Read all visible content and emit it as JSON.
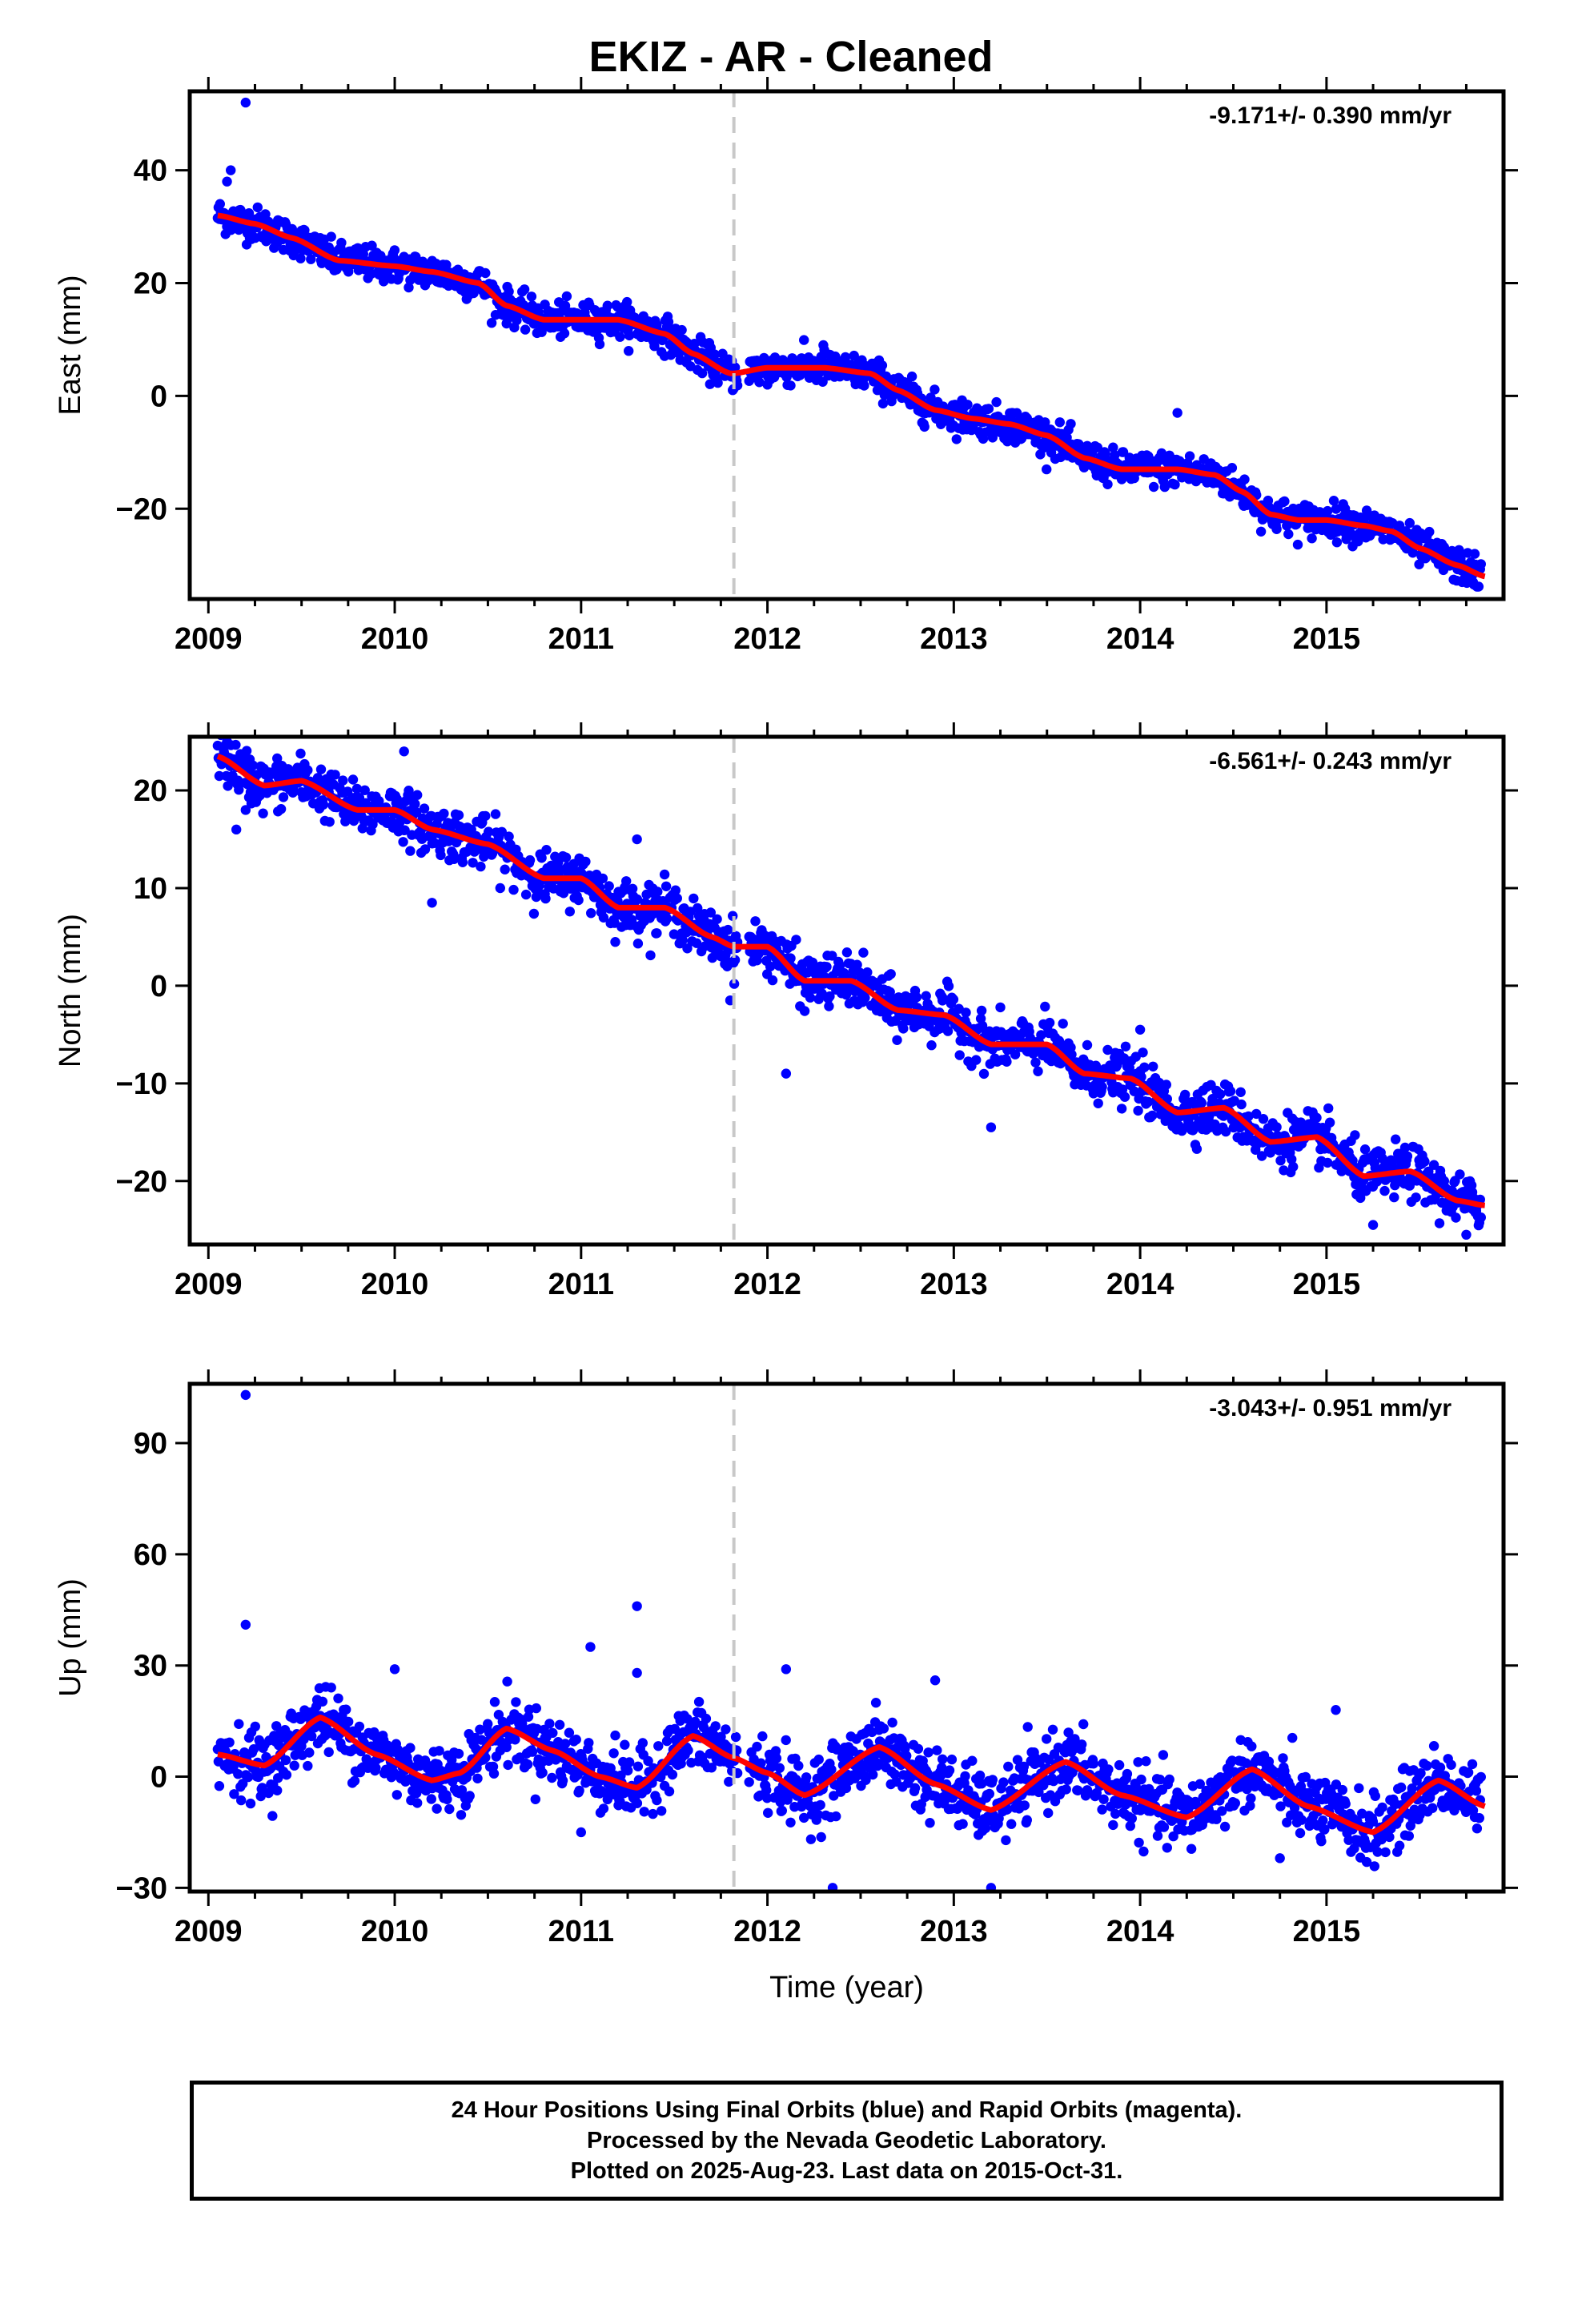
{
  "title": "EKIZ  - AR - Cleaned",
  "colors": {
    "points": "#0000ff",
    "fit": "#ff0000",
    "break_line": "#c8c8c8",
    "frame": "#000000"
  },
  "footer": {
    "line1": "24 Hour Positions Using Final Orbits (blue) and Rapid Orbits (magenta).",
    "line2": "Processed by the Nevada Geodetic Laboratory.",
    "line3": "Plotted on 2025-Aug-23. Last data on 2015-Oct-31."
  },
  "chart_data": [
    {
      "type": "scatter",
      "ylabel": "East (mm)",
      "annotation": "-9.171+/- 0.390 mm/yr",
      "xlim": [
        2008.9,
        2015.95
      ],
      "ylim": [
        -36,
        54
      ],
      "xticks": [
        2009,
        2010,
        2011,
        2012,
        2013,
        2014,
        2015
      ],
      "yticks": [
        40,
        20,
        0,
        -20
      ],
      "ytick_labels": [
        "40",
        "20",
        "0",
        "−20"
      ],
      "break_x": 2011.82,
      "grid": false,
      "fit_line": {
        "x": [
          2009.05,
          2009.25,
          2009.45,
          2009.7,
          2010.0,
          2010.2,
          2010.45,
          2010.6,
          2010.8,
          2011.0,
          2011.2,
          2011.45,
          2011.6,
          2011.8,
          2011.82,
          2012.0,
          2012.3,
          2012.55,
          2012.7,
          2012.9,
          2013.1,
          2013.3,
          2013.5,
          2013.7,
          2013.9,
          2014.2,
          2014.4,
          2014.55,
          2014.7,
          2014.85,
          2015.0,
          2015.2,
          2015.35,
          2015.5,
          2015.7,
          2015.85
        ],
        "y": [
          32,
          30.5,
          28,
          24,
          23,
          22,
          20,
          16,
          13.5,
          13.5,
          13.5,
          11,
          7.5,
          4,
          4,
          5,
          5,
          4,
          1,
          -2.5,
          -4,
          -5,
          -7,
          -11,
          -13,
          -13,
          -14,
          -17,
          -21,
          -22,
          -22,
          -23,
          -24,
          -27,
          -30,
          -32
        ]
      },
      "points_note": "daily positions around fit line",
      "scatter": 1.5,
      "outliers": [
        [
          2009.1,
          38
        ],
        [
          2009.12,
          40
        ],
        [
          2009.2,
          52
        ],
        [
          2009.1,
          30
        ],
        [
          2012.3,
          9
        ],
        [
          2014.2,
          -3
        ],
        [
          2015.1,
          -20
        ],
        [
          2012.0,
          2
        ]
      ]
    },
    {
      "type": "scatter",
      "ylabel": "North (mm)",
      "annotation": "-6.561+/- 0.243 mm/yr",
      "xlim": [
        2008.9,
        2015.95
      ],
      "ylim": [
        -26.5,
        25.5
      ],
      "xticks": [
        2009,
        2010,
        2011,
        2012,
        2013,
        2014,
        2015
      ],
      "yticks": [
        20,
        10,
        0,
        -10,
        -20
      ],
      "ytick_labels": [
        "20",
        "10",
        "0",
        "−10",
        "−20"
      ],
      "break_x": 2011.82,
      "grid": false,
      "fit_line": {
        "x": [
          2009.05,
          2009.3,
          2009.5,
          2009.8,
          2010.0,
          2010.2,
          2010.5,
          2010.8,
          2011.0,
          2011.2,
          2011.45,
          2011.7,
          2011.82,
          2012.0,
          2012.2,
          2012.45,
          2012.7,
          2012.95,
          2013.2,
          2013.5,
          2013.7,
          2013.95,
          2014.2,
          2014.45,
          2014.7,
          2014.95,
          2015.2,
          2015.45,
          2015.7,
          2015.85
        ],
        "y": [
          23.5,
          20.5,
          21,
          18,
          18,
          16,
          14.5,
          11,
          11,
          8,
          8,
          5,
          4,
          4,
          0.5,
          0.5,
          -2.5,
          -3,
          -6,
          -6,
          -9,
          -9.5,
          -13,
          -12.5,
          -16,
          -15.5,
          -19.5,
          -19,
          -22,
          -22.5
        ]
      },
      "points_note": "daily positions around fit line",
      "scatter": 1.3,
      "outliers": [
        [
          2009.15,
          16
        ],
        [
          2009.2,
          18
        ],
        [
          2010.2,
          8.5
        ],
        [
          2011.3,
          15
        ],
        [
          2011.8,
          -1.5
        ],
        [
          2012.1,
          -9
        ],
        [
          2013.2,
          -14.5
        ],
        [
          2014.0,
          -4.5
        ],
        [
          2015.25,
          -24.5
        ],
        [
          2015.75,
          -25.5
        ],
        [
          2009.1,
          25
        ],
        [
          2010.05,
          24
        ]
      ]
    },
    {
      "type": "scatter",
      "ylabel": "Up (mm)",
      "annotation": "-3.043+/- 0.951 mm/yr",
      "xlabel": "Time (year)",
      "xlim": [
        2008.9,
        2015.95
      ],
      "ylim": [
        -31,
        106
      ],
      "xticks": [
        2009,
        2010,
        2011,
        2012,
        2013,
        2014,
        2015
      ],
      "yticks": [
        90,
        60,
        30,
        0,
        -30
      ],
      "ytick_labels": [
        "90",
        "60",
        "30",
        "0",
        "−30"
      ],
      "break_x": 2011.82,
      "grid": false,
      "fit_line": {
        "x": [
          2009.05,
          2009.3,
          2009.6,
          2009.9,
          2010.2,
          2010.35,
          2010.6,
          2010.85,
          2011.1,
          2011.3,
          2011.6,
          2011.82,
          2012.0,
          2012.2,
          2012.6,
          2012.9,
          2013.2,
          2013.6,
          2013.9,
          2014.25,
          2014.6,
          2014.9,
          2015.25,
          2015.6,
          2015.85
        ],
        "y": [
          6,
          3,
          16,
          6,
          -1,
          1,
          13,
          7,
          0,
          -3,
          11,
          5,
          1,
          -5,
          8,
          -2,
          -9,
          4,
          -5,
          -11,
          2,
          -8,
          -15,
          -1,
          -8
        ]
      },
      "points_note": "daily positions around fit line",
      "scatter": 4.5,
      "outliers": [
        [
          2009.2,
          103
        ],
        [
          2009.2,
          41
        ],
        [
          2011.3,
          46
        ],
        [
          2011.05,
          35
        ],
        [
          2012.1,
          29
        ],
        [
          2012.9,
          26
        ],
        [
          2011.3,
          28
        ],
        [
          2013.2,
          -30
        ],
        [
          2012.35,
          -30
        ],
        [
          2015.05,
          18
        ],
        [
          2010.0,
          29
        ],
        [
          2011.0,
          -15
        ],
        [
          2014.75,
          -22
        ]
      ]
    }
  ]
}
